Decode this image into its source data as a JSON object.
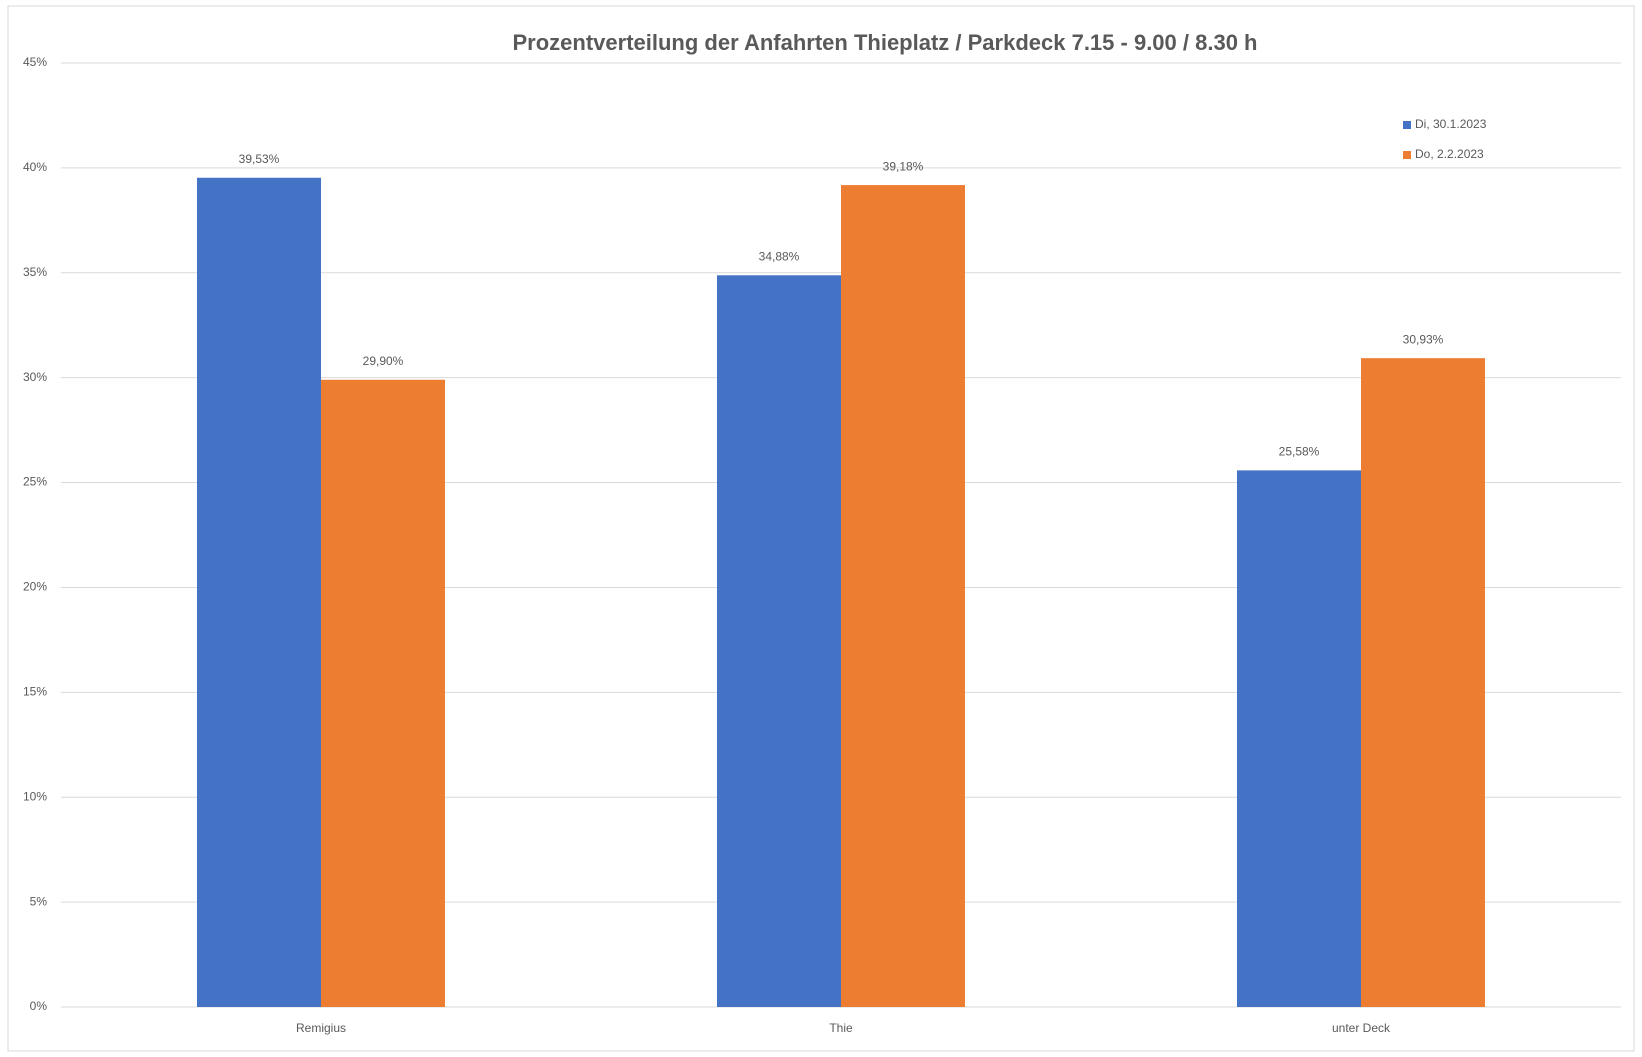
{
  "chart_data": {
    "type": "bar",
    "title": "Prozentverteilung der Anfahrten Thieplatz / Parkdeck 7.15 - 9.00 / 8.30 h",
    "categories": [
      "Remigius",
      "Thie",
      "unter Deck"
    ],
    "series": [
      {
        "name": "Di, 30.1.2023",
        "color": "#4472c4",
        "values": [
          39.53,
          34.88,
          25.58
        ],
        "value_labels": [
          "39,53%",
          "34,88%",
          "25,58%"
        ]
      },
      {
        "name": "Do, 2.2.2023",
        "color": "#ed7d31",
        "values": [
          29.9,
          39.18,
          30.93
        ],
        "value_labels": [
          "29,90%",
          "39,18%",
          "30,93%"
        ]
      }
    ],
    "ylim": [
      0,
      45
    ],
    "yticks": [
      {
        "value": 0,
        "label": "0%"
      },
      {
        "value": 5,
        "label": "5%"
      },
      {
        "value": 10,
        "label": "10%"
      },
      {
        "value": 15,
        "label": "15%"
      },
      {
        "value": 20,
        "label": "20%"
      },
      {
        "value": 25,
        "label": "25%"
      },
      {
        "value": 30,
        "label": "30%"
      },
      {
        "value": 35,
        "label": "35%"
      },
      {
        "value": 40,
        "label": "40%"
      },
      {
        "value": 45,
        "label": "45%"
      }
    ],
    "grid": true,
    "legend": "top-right"
  }
}
